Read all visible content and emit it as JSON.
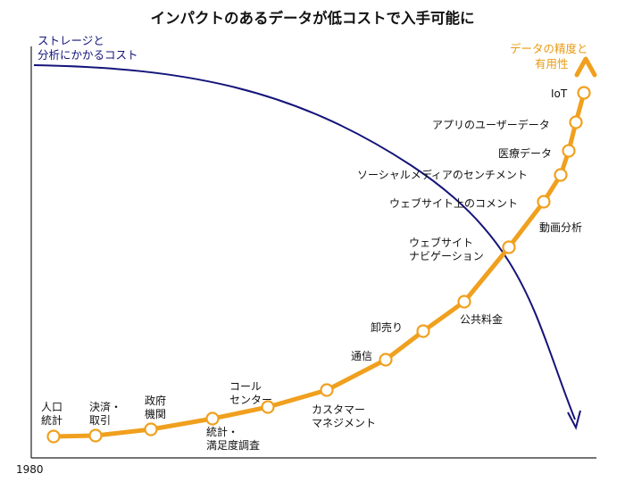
{
  "title": "インパクトのあるデータが低コストで入手可能に",
  "year_label": "1980",
  "colors": {
    "cost": "#14147a",
    "value": "#f0a01e",
    "text": "#111111"
  },
  "cost_curve_label": [
    "ストレージと",
    "分析にかかるコスト"
  ],
  "value_curve_label": [
    "データの精度と",
    "有用性"
  ],
  "milestones": [
    {
      "id": "population-stats",
      "lines": [
        "人口",
        "統計"
      ]
    },
    {
      "id": "payment-transactions",
      "lines": [
        "決済・",
        "取引"
      ]
    },
    {
      "id": "government-agencies",
      "lines": [
        "政府",
        "機関"
      ]
    },
    {
      "id": "satisfaction-survey",
      "lines": [
        "統計・",
        "満足度調査"
      ]
    },
    {
      "id": "call-center",
      "lines": [
        "コール",
        "センター"
      ]
    },
    {
      "id": "customer-management",
      "lines": [
        "カスタマー",
        "マネジメント"
      ]
    },
    {
      "id": "telecom",
      "lines": [
        "通信"
      ]
    },
    {
      "id": "wholesale",
      "lines": [
        "卸売り"
      ]
    },
    {
      "id": "utilities",
      "lines": [
        "公共料金"
      ]
    },
    {
      "id": "website-navigation",
      "lines": [
        "ウェブサイト",
        "ナビゲーション"
      ]
    },
    {
      "id": "video-analytics",
      "lines": [
        "動画分析"
      ]
    },
    {
      "id": "website-comments",
      "lines": [
        "ウェブサイト上のコメント"
      ]
    },
    {
      "id": "social-media-sentiment",
      "lines": [
        "ソーシャルメディアのセンチメント"
      ]
    },
    {
      "id": "medical-data",
      "lines": [
        "医療データ"
      ]
    },
    {
      "id": "app-user-data",
      "lines": [
        "アプリのユーザーデータ"
      ]
    },
    {
      "id": "iot",
      "lines": [
        "IoT"
      ]
    }
  ]
}
